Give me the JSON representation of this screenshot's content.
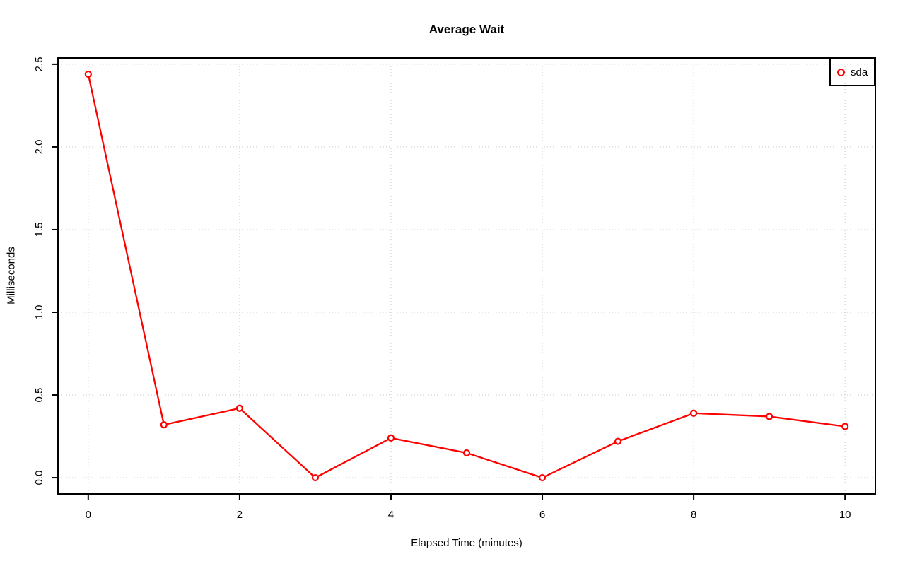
{
  "chart_data": {
    "type": "line",
    "title": "Average Wait",
    "xlabel": "Elapsed Time (minutes)",
    "ylabel": "Milliseconds",
    "x": [
      0,
      1,
      2,
      3,
      4,
      5,
      6,
      7,
      8,
      9,
      10
    ],
    "series": [
      {
        "name": "sda",
        "color": "#FF0000",
        "marker": "open-circle",
        "values": [
          2.44,
          0.32,
          0.42,
          0.0,
          0.24,
          0.15,
          0.0,
          0.22,
          0.39,
          0.37,
          0.31
        ]
      }
    ],
    "xticks": {
      "values": [
        0,
        2,
        4,
        6,
        8,
        10
      ],
      "labels": [
        "0",
        "2",
        "4",
        "6",
        "8",
        "10"
      ]
    },
    "yticks": {
      "values": [
        0.0,
        0.5,
        1.0,
        1.5,
        2.0,
        2.5
      ],
      "labels": [
        "0.0",
        "0.5",
        "1.0",
        "1.5",
        "2.0",
        "2.5"
      ]
    },
    "xlim": [
      -0.4,
      10.4
    ],
    "ylim": [
      -0.098,
      2.538
    ],
    "grid": {
      "visible": true,
      "style": "dotted",
      "color": "#C9C9C9"
    },
    "legend": {
      "position": "top-right",
      "entries": [
        {
          "label": "sda",
          "color": "#FF0000",
          "marker": "open-circle"
        }
      ]
    },
    "colors": {
      "background": "#FFFFFF",
      "axis": "#000000",
      "text": "#000000"
    }
  }
}
